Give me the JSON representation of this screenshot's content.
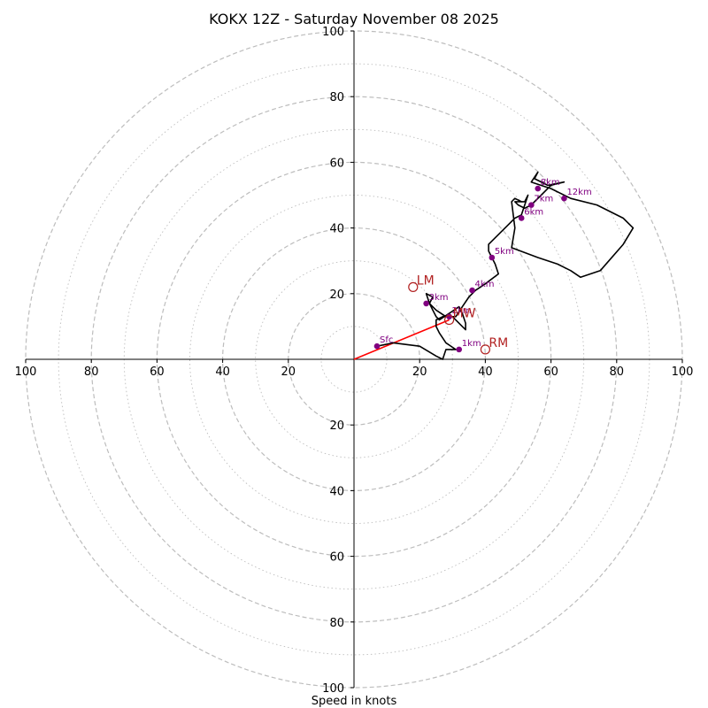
{
  "chart_data": {
    "type": "hodograph",
    "title": "KOKX 12Z - Saturday November 08 2025",
    "xlabel": "Speed in knots",
    "axis_range": [
      -100,
      100
    ],
    "ring_major_step": 20,
    "ring_minor_step": 10,
    "x_tick_labels": [
      "100",
      "80",
      "60",
      "40",
      "20",
      "20",
      "40",
      "60",
      "80",
      "100"
    ],
    "x_tick_values": [
      -100,
      -80,
      -60,
      -40,
      -20,
      20,
      40,
      60,
      80,
      100
    ],
    "y_tick_labels": [
      "100",
      "80",
      "60",
      "40",
      "20",
      "20",
      "40",
      "60",
      "80",
      "100"
    ],
    "y_tick_values": [
      100,
      80,
      60,
      40,
      20,
      -20,
      -40,
      -60,
      -80,
      -100
    ],
    "trace": [
      [
        7,
        4
      ],
      [
        12,
        5
      ],
      [
        20,
        4
      ],
      [
        25,
        1
      ],
      [
        27,
        0
      ],
      [
        28,
        3
      ],
      [
        31,
        3
      ],
      [
        28,
        5
      ],
      [
        26,
        8
      ],
      [
        25,
        10
      ],
      [
        25,
        12
      ],
      [
        27,
        13
      ],
      [
        30,
        13
      ],
      [
        33,
        10
      ],
      [
        34,
        9
      ],
      [
        34,
        11
      ],
      [
        33,
        14
      ],
      [
        32,
        16
      ],
      [
        29,
        14
      ],
      [
        26,
        12
      ],
      [
        25,
        13
      ],
      [
        24,
        15
      ],
      [
        23,
        17
      ],
      [
        24,
        19
      ],
      [
        22,
        20
      ],
      [
        23,
        17
      ],
      [
        25,
        15
      ],
      [
        28,
        13
      ],
      [
        31,
        13
      ],
      [
        33,
        16
      ],
      [
        35,
        19
      ],
      [
        37,
        21
      ],
      [
        40,
        23
      ],
      [
        44,
        26
      ],
      [
        43,
        29
      ],
      [
        41,
        33
      ],
      [
        41,
        35
      ],
      [
        46,
        40
      ],
      [
        49,
        43
      ],
      [
        51,
        44
      ],
      [
        52,
        47
      ],
      [
        53,
        50
      ],
      [
        52,
        48
      ],
      [
        49,
        48
      ],
      [
        50,
        47
      ],
      [
        52,
        46
      ],
      [
        54,
        47
      ],
      [
        57,
        50
      ],
      [
        59,
        52
      ],
      [
        60,
        53
      ],
      [
        64,
        54
      ],
      [
        59,
        53
      ],
      [
        55,
        55
      ],
      [
        56,
        57
      ],
      [
        54,
        54
      ],
      [
        60,
        52
      ],
      [
        66,
        49
      ],
      [
        74,
        47
      ],
      [
        82,
        43
      ],
      [
        85,
        40
      ],
      [
        82,
        35
      ],
      [
        75,
        27
      ],
      [
        69,
        25
      ],
      [
        66,
        27
      ],
      [
        62,
        29
      ],
      [
        56,
        31
      ],
      [
        48,
        34
      ],
      [
        49,
        40
      ],
      [
        48,
        48
      ],
      [
        49,
        49
      ],
      [
        51,
        48
      ]
    ],
    "height_markers": [
      {
        "label": "Sfc",
        "u": 7,
        "v": 4
      },
      {
        "label": "1km",
        "u": 32,
        "v": 3
      },
      {
        "label": "2km",
        "u": 29,
        "v": 13
      },
      {
        "label": "3km",
        "u": 22,
        "v": 17
      },
      {
        "label": "4km",
        "u": 36,
        "v": 21
      },
      {
        "label": "5km",
        "u": 42,
        "v": 31
      },
      {
        "label": "6km",
        "u": 51,
        "v": 43
      },
      {
        "label": "7km",
        "u": 54,
        "v": 47
      },
      {
        "label": "8km",
        "u": 56,
        "v": 52
      },
      {
        "label": "12km",
        "u": 64,
        "v": 49
      }
    ],
    "motion_markers": [
      {
        "label": "LM",
        "u": 18,
        "v": 22
      },
      {
        "label": "RM",
        "u": 40,
        "v": 3
      },
      {
        "label": "MW",
        "u": 29,
        "v": 12
      }
    ],
    "storm_motion_vector": {
      "from": [
        0,
        0
      ],
      "to": [
        29,
        12
      ]
    },
    "colors": {
      "trace": "#000000",
      "height_marker": "#800080",
      "motion_marker": "#b22222",
      "vector": "#ff0000",
      "ring": "#bdbdbd",
      "axis": "#000000"
    }
  }
}
